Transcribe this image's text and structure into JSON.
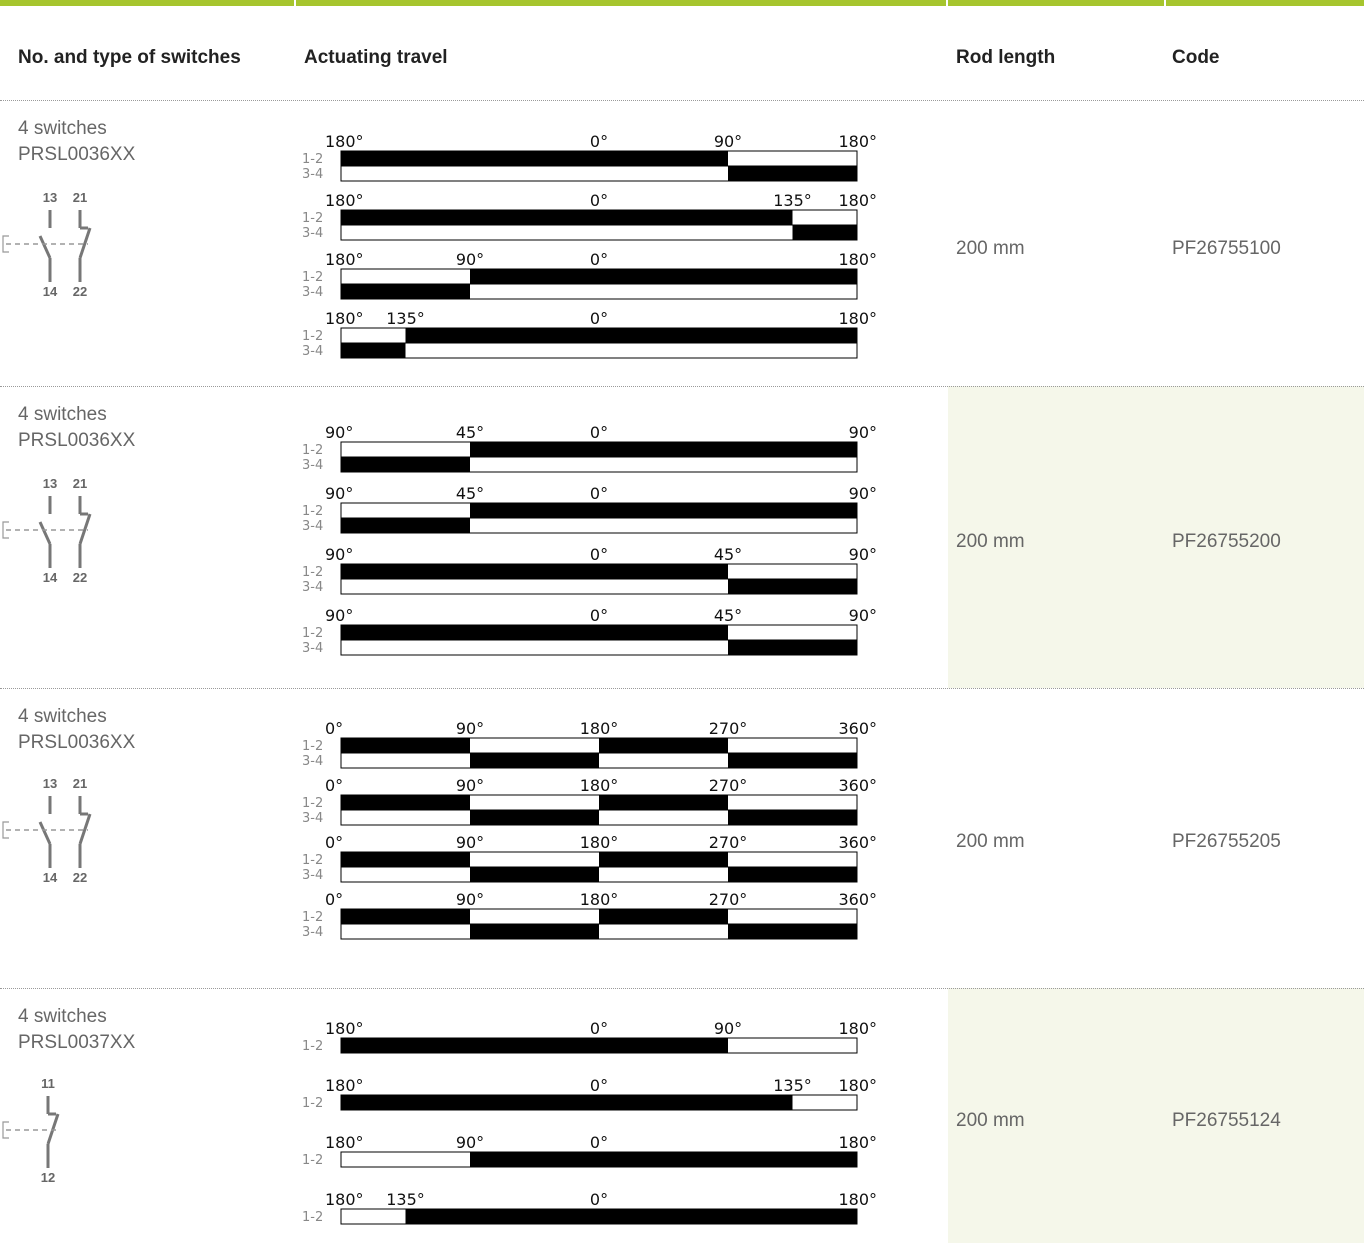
{
  "header": {
    "col_switches": "No. and type of switches",
    "col_travel": "Actuating travel",
    "col_rod": "Rod length",
    "col_code": "Code"
  },
  "colors": {
    "accent": "#a6c52e",
    "shade": "#f5f7ea",
    "text": "#666666",
    "bar": "#000000"
  },
  "rows": [
    {
      "switches": "4 switches",
      "model": "PRSL0036XX",
      "rod": "200 mm",
      "code": "PF26755100",
      "shaded": false,
      "symbol": {
        "type": "double",
        "terminals": [
          "13",
          "21",
          "14",
          "22"
        ]
      },
      "lanes": [
        "1-2",
        "3-4"
      ],
      "diagrams": [
        {
          "labels": [
            [
              "180°",
              0.0
            ],
            [
              "0°",
              0.5
            ],
            [
              "90°",
              0.75
            ],
            [
              "180°",
              1.0
            ]
          ],
          "bars": [
            [
              [
                0.0,
                0.75
              ]
            ],
            [
              [
                0.75,
                1.0
              ]
            ]
          ]
        },
        {
          "labels": [
            [
              "180°",
              0.0
            ],
            [
              "0°",
              0.5
            ],
            [
              "135°",
              0.875
            ],
            [
              "180°",
              1.0
            ]
          ],
          "bars": [
            [
              [
                0.0,
                0.875
              ]
            ],
            [
              [
                0.875,
                1.0
              ]
            ]
          ]
        },
        {
          "labels": [
            [
              "180°",
              0.0
            ],
            [
              "90°",
              0.25
            ],
            [
              "0°",
              0.5
            ],
            [
              "180°",
              1.0
            ]
          ],
          "bars": [
            [
              [
                0.25,
                1.0
              ]
            ],
            [
              [
                0.0,
                0.25
              ]
            ]
          ]
        },
        {
          "labels": [
            [
              "180°",
              0.0
            ],
            [
              "135°",
              0.125
            ],
            [
              "0°",
              0.5
            ],
            [
              "180°",
              1.0
            ]
          ],
          "bars": [
            [
              [
                0.125,
                1.0
              ]
            ],
            [
              [
                0.0,
                0.125
              ]
            ]
          ]
        }
      ]
    },
    {
      "switches": "4 switches",
      "model": "PRSL0036XX",
      "rod": "200 mm",
      "code": "PF26755200",
      "shaded": true,
      "symbol": {
        "type": "double",
        "terminals": [
          "13",
          "21",
          "14",
          "22"
        ]
      },
      "lanes": [
        "1-2",
        "3-4"
      ],
      "diagrams": [
        {
          "labels": [
            [
              "90°",
              0.0
            ],
            [
              "45°",
              0.25
            ],
            [
              "0°",
              0.5
            ],
            [
              "90°",
              1.0
            ]
          ],
          "bars": [
            [
              [
                0.25,
                1.0
              ]
            ],
            [
              [
                0.0,
                0.25
              ]
            ]
          ]
        },
        {
          "labels": [
            [
              "90°",
              0.0
            ],
            [
              "45°",
              0.25
            ],
            [
              "0°",
              0.5
            ],
            [
              "90°",
              1.0
            ]
          ],
          "bars": [
            [
              [
                0.25,
                1.0
              ]
            ],
            [
              [
                0.0,
                0.25
              ]
            ]
          ]
        },
        {
          "labels": [
            [
              "90°",
              0.0
            ],
            [
              "0°",
              0.5
            ],
            [
              "45°",
              0.75
            ],
            [
              "90°",
              1.0
            ]
          ],
          "bars": [
            [
              [
                0.0,
                0.75
              ]
            ],
            [
              [
                0.75,
                1.0
              ]
            ]
          ]
        },
        {
          "labels": [
            [
              "90°",
              0.0
            ],
            [
              "0°",
              0.5
            ],
            [
              "45°",
              0.75
            ],
            [
              "90°",
              1.0
            ]
          ],
          "bars": [
            [
              [
                0.0,
                0.75
              ]
            ],
            [
              [
                0.75,
                1.0
              ]
            ]
          ]
        }
      ]
    },
    {
      "switches": "4 switches",
      "model": "PRSL0036XX",
      "rod": "200 mm",
      "code": "PF26755205",
      "shaded": false,
      "symbol": {
        "type": "double",
        "terminals": [
          "13",
          "21",
          "14",
          "22"
        ]
      },
      "lanes": [
        "1-2",
        "3-4"
      ],
      "diagrams": [
        {
          "labels": [
            [
              "0°",
              0.0
            ],
            [
              "90°",
              0.25
            ],
            [
              "180°",
              0.5
            ],
            [
              "270°",
              0.75
            ],
            [
              "360°",
              1.0
            ]
          ],
          "bars": [
            [
              [
                0.0,
                0.25
              ],
              [
                0.5,
                0.75
              ]
            ],
            [
              [
                0.25,
                0.5
              ],
              [
                0.75,
                1.0
              ]
            ]
          ]
        },
        {
          "labels": [
            [
              "0°",
              0.0
            ],
            [
              "90°",
              0.25
            ],
            [
              "180°",
              0.5
            ],
            [
              "270°",
              0.75
            ],
            [
              "360°",
              1.0
            ]
          ],
          "bars": [
            [
              [
                0.0,
                0.25
              ],
              [
                0.5,
                0.75
              ]
            ],
            [
              [
                0.25,
                0.5
              ],
              [
                0.75,
                1.0
              ]
            ]
          ]
        },
        {
          "labels": [
            [
              "0°",
              0.0
            ],
            [
              "90°",
              0.25
            ],
            [
              "180°",
              0.5
            ],
            [
              "270°",
              0.75
            ],
            [
              "360°",
              1.0
            ]
          ],
          "bars": [
            [
              [
                0.0,
                0.25
              ],
              [
                0.5,
                0.75
              ]
            ],
            [
              [
                0.25,
                0.5
              ],
              [
                0.75,
                1.0
              ]
            ]
          ]
        },
        {
          "labels": [
            [
              "0°",
              0.0
            ],
            [
              "90°",
              0.25
            ],
            [
              "180°",
              0.5
            ],
            [
              "270°",
              0.75
            ],
            [
              "360°",
              1.0
            ]
          ],
          "bars": [
            [
              [
                0.0,
                0.25
              ],
              [
                0.5,
                0.75
              ]
            ],
            [
              [
                0.25,
                0.5
              ],
              [
                0.75,
                1.0
              ]
            ]
          ]
        }
      ]
    },
    {
      "switches": "4 switches",
      "model": "PRSL0037XX",
      "rod": "200 mm",
      "code": "PF26755124",
      "shaded": true,
      "symbol": {
        "type": "single",
        "terminals": [
          "11",
          "12"
        ]
      },
      "lanes": [
        "1-2"
      ],
      "diagrams": [
        {
          "labels": [
            [
              "180°",
              0.0
            ],
            [
              "0°",
              0.5
            ],
            [
              "90°",
              0.75
            ],
            [
              "180°",
              1.0
            ]
          ],
          "bars": [
            [
              [
                0.0,
                0.75
              ]
            ]
          ]
        },
        {
          "labels": [
            [
              "180°",
              0.0
            ],
            [
              "0°",
              0.5
            ],
            [
              "135°",
              0.875
            ],
            [
              "180°",
              1.0
            ]
          ],
          "bars": [
            [
              [
                0.0,
                0.875
              ]
            ]
          ]
        },
        {
          "labels": [
            [
              "180°",
              0.0
            ],
            [
              "90°",
              0.25
            ],
            [
              "0°",
              0.5
            ],
            [
              "180°",
              1.0
            ]
          ],
          "bars": [
            [
              [
                0.25,
                1.0
              ]
            ]
          ]
        },
        {
          "labels": [
            [
              "180°",
              0.0
            ],
            [
              "135°",
              0.125
            ],
            [
              "0°",
              0.5
            ],
            [
              "180°",
              1.0
            ]
          ],
          "bars": [
            [
              [
                0.125,
                1.0
              ]
            ]
          ]
        }
      ]
    }
  ]
}
